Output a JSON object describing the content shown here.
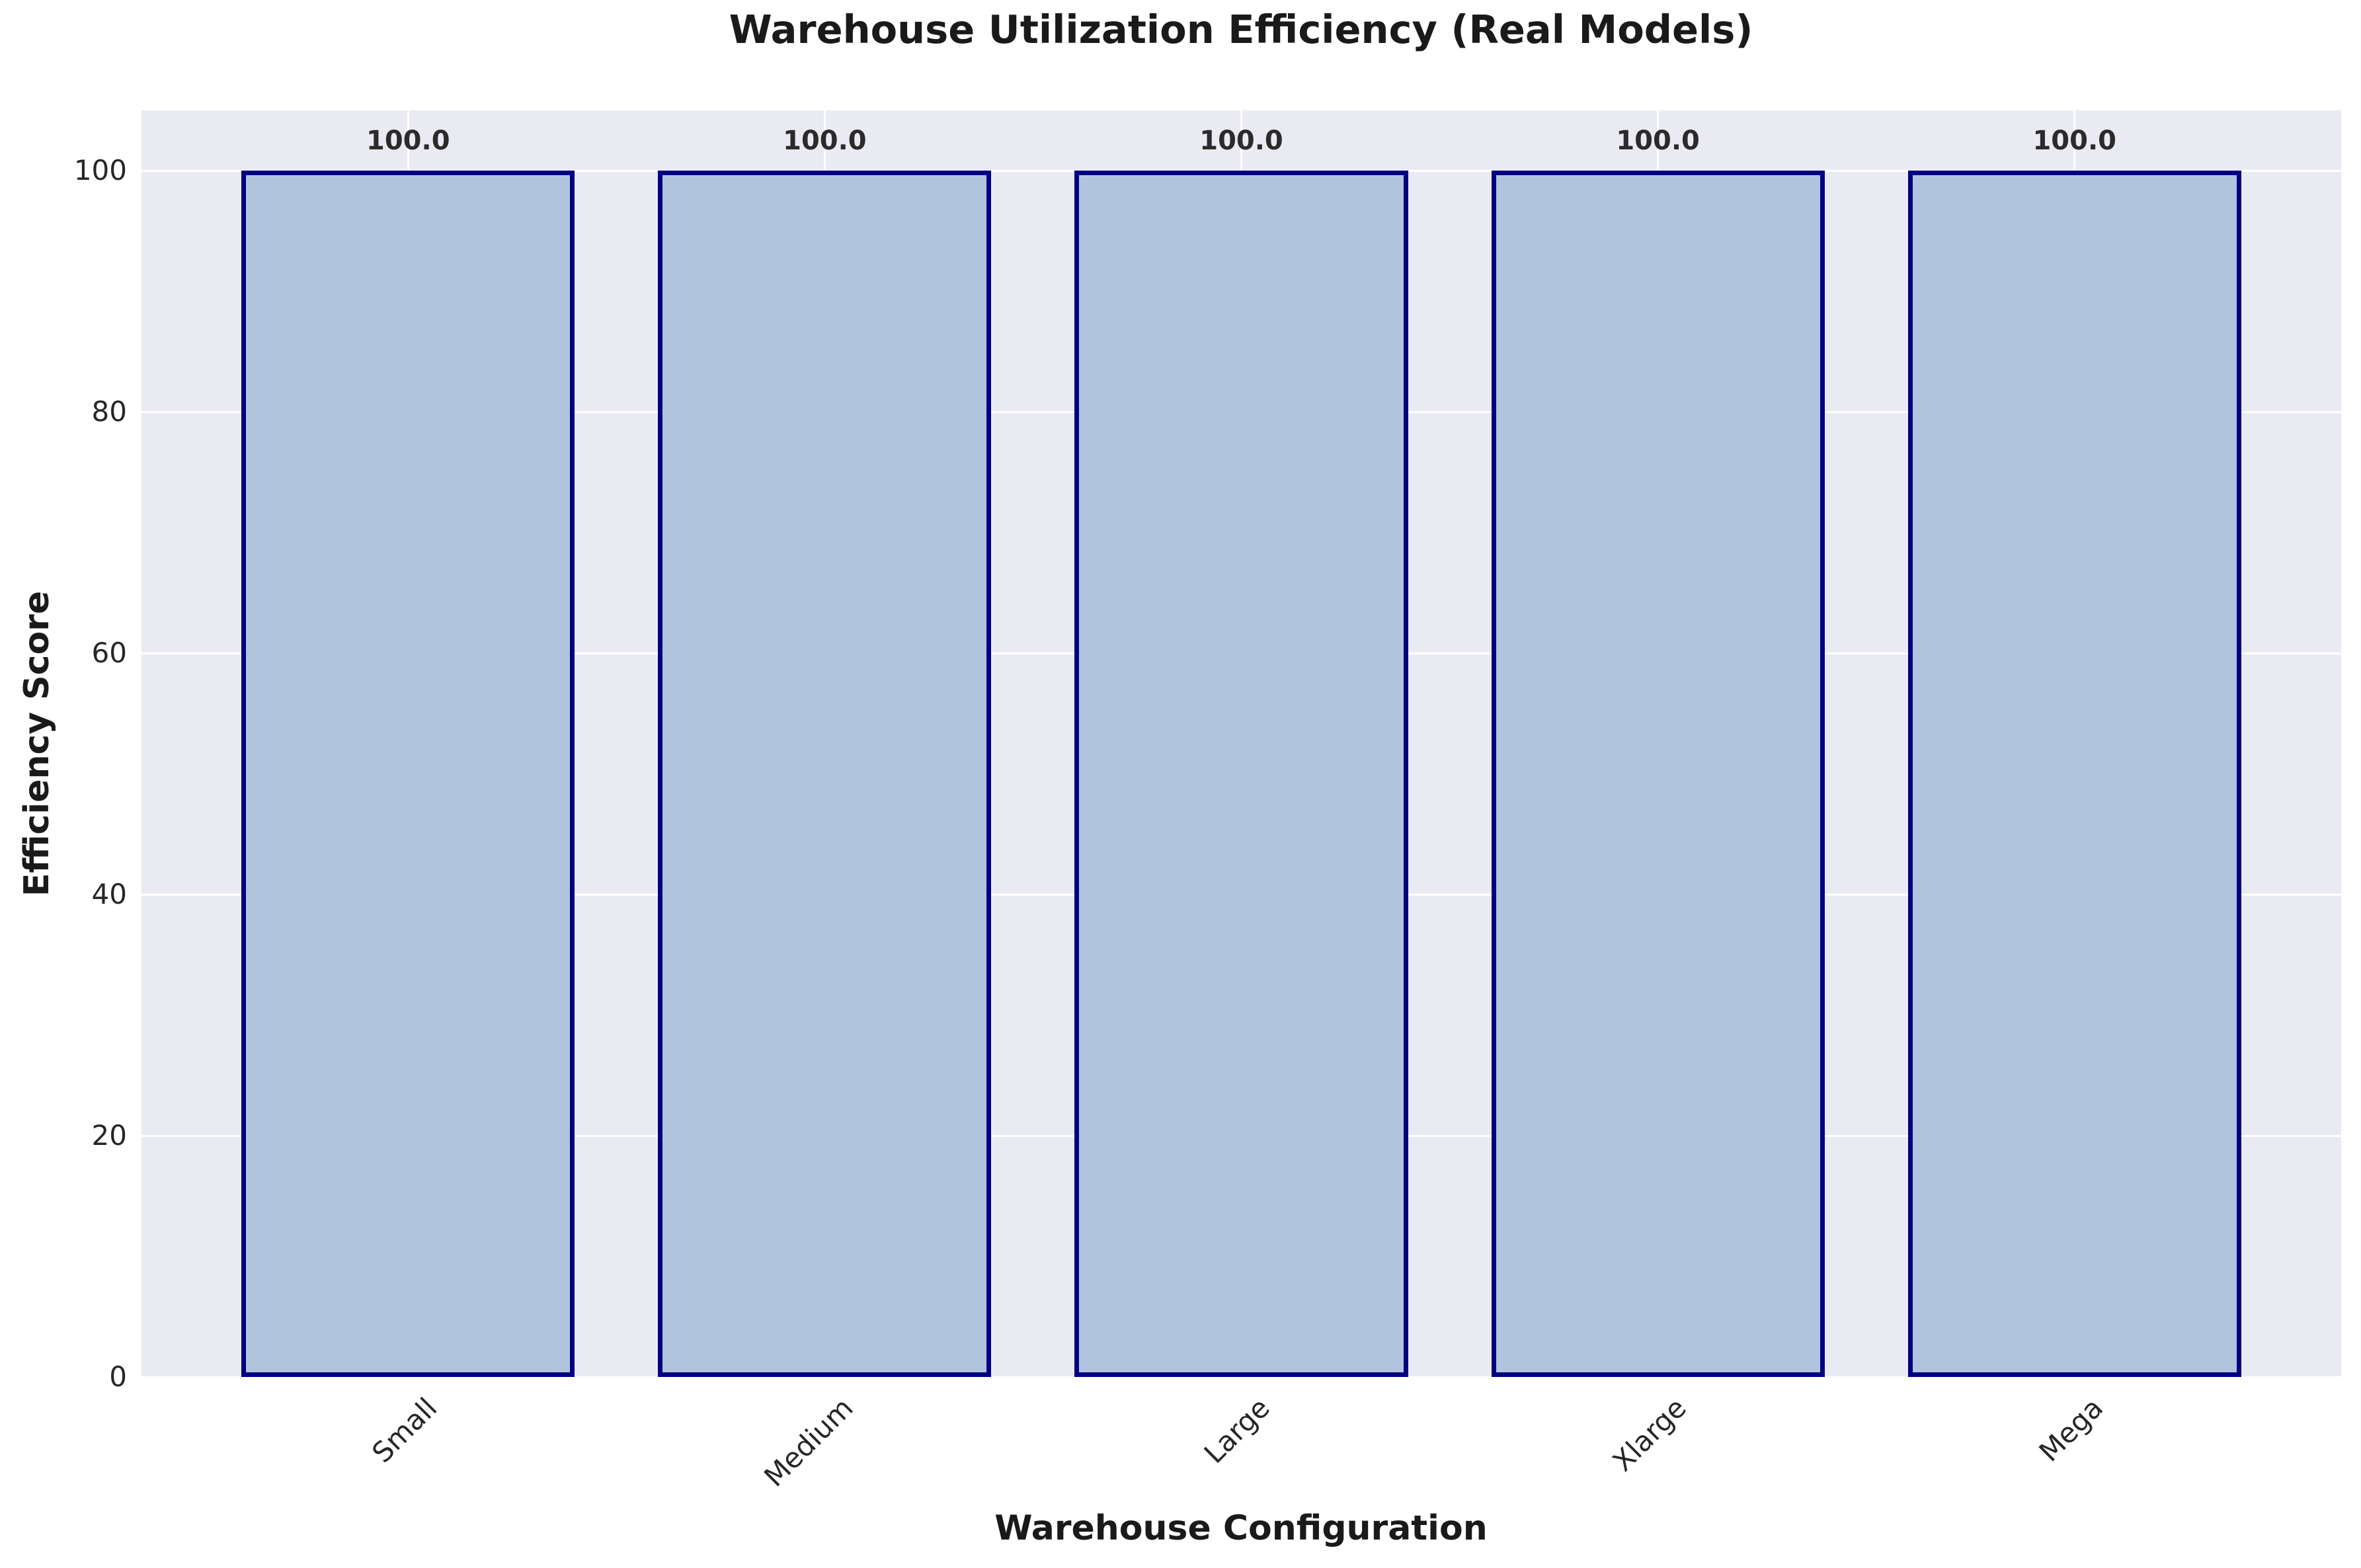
{
  "chart_data": {
    "type": "bar",
    "title": "Warehouse Utilization Efficiency (Real Models)",
    "xlabel": "Warehouse Configuration",
    "ylabel": "Efficiency Score",
    "categories": [
      "Small",
      "Medium",
      "Large",
      "Xlarge",
      "Mega"
    ],
    "values": [
      100.0,
      100.0,
      100.0,
      100.0,
      100.0
    ],
    "bar_labels": [
      "100.0",
      "100.0",
      "100.0",
      "100.0",
      "100.0"
    ],
    "yticks": [
      0,
      20,
      40,
      60,
      80,
      100
    ],
    "ylim": [
      0,
      105
    ],
    "grid": true,
    "legend": "none",
    "x_tick_rotation_deg": 45,
    "colors": {
      "bar_fill": "#b0c4de",
      "bar_edge": "#000080",
      "plot_background": "#eaeaf2",
      "gridline": "#ffffff",
      "text": "#262626",
      "figure_background": "#ffffff"
    }
  }
}
